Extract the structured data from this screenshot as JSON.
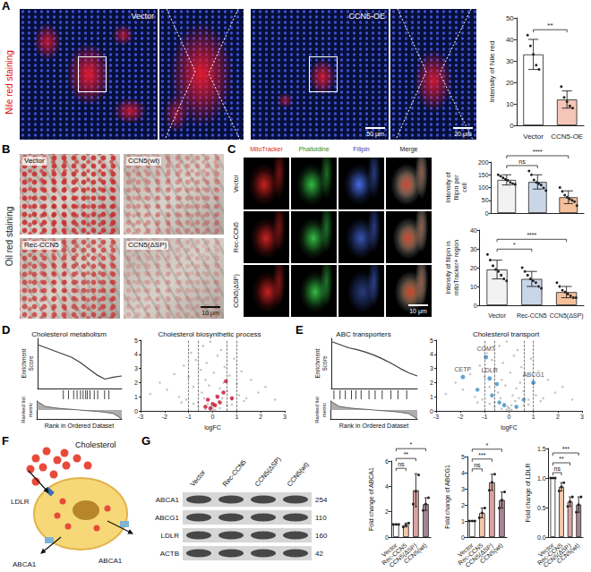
{
  "panel_letters": [
    "A",
    "B",
    "C",
    "D",
    "E",
    "F",
    "G"
  ],
  "panel_a_images": {
    "side_label": "Nile red staining",
    "tiles": [
      "Vector",
      "CCN5-OE"
    ],
    "scale_bars": [
      "50 μm",
      "20 μm"
    ]
  },
  "panel_b_images": {
    "side_label": "Oil red staining",
    "tiles": [
      "Vector",
      "CCN5(wt)",
      "Rec-CCN5",
      "CCN5(ΔSP)"
    ],
    "scale_bar": "10 μm"
  },
  "panel_c_images": {
    "columns": [
      "MitoTracker",
      "Phalloidine",
      "Filipin",
      "Merge"
    ],
    "rows": [
      "Vector",
      "Rec-CCN5",
      "CCN5(ΔSP)"
    ],
    "scale_bar": "10 μm"
  },
  "panel_f_diagram": {
    "labels": [
      "Cholesterol",
      "LDLR",
      "ABCA1",
      "ABCA1"
    ]
  },
  "panel_g_blot": {
    "lanes": [
      "Vector",
      "Rec-CCN5",
      "CCN5(ΔSP)",
      "CCN5(wt)"
    ],
    "rows": [
      {
        "protein": "ABCA1",
        "kda": 254
      },
      {
        "protein": "ABCG1",
        "kda": 110
      },
      {
        "protein": "LDLR",
        "kda": 160
      },
      {
        "protein": "ACTB",
        "kda": 42
      }
    ]
  },
  "chart_data": [
    {
      "type": "bar",
      "ylabel": "Intensity of Nile red",
      "categories": [
        "Vector",
        "CCN5-OE"
      ],
      "values": [
        33,
        12
      ],
      "sd": [
        7,
        4
      ],
      "points": [
        [
          42,
          37,
          33,
          28,
          26
        ],
        [
          18,
          13,
          11,
          9,
          8
        ]
      ],
      "colors": [
        "#ffffff",
        "#f5c6b8"
      ],
      "ylim": [
        0,
        50
      ],
      "yticks": [
        0,
        10,
        20,
        30,
        40,
        50
      ],
      "grid": false,
      "comparisons": [
        {
          "from": 0,
          "to": 1,
          "label": "**"
        }
      ]
    },
    {
      "type": "bar",
      "ylabel": "Intensity of filipin per cell",
      "categories": [
        "Vector",
        "Rec-CCN5",
        "CCN5(ΔSP)"
      ],
      "values": [
        130,
        122,
        62
      ],
      "sd": [
        20,
        28,
        25
      ],
      "points": [
        [
          150,
          145,
          138,
          132,
          128,
          120,
          115,
          112
        ],
        [
          165,
          150,
          130,
          120,
          115,
          110,
          98,
          88
        ],
        [
          100,
          85,
          70,
          62,
          55,
          50,
          45,
          29
        ]
      ],
      "colors": [
        "#f2f2f2",
        "#c9d6e8",
        "#f5c09a"
      ],
      "ylim": [
        0,
        200
      ],
      "yticks": [
        0,
        50,
        100,
        150,
        200
      ],
      "grid": false,
      "tick_labels": "y",
      "comparisons": [
        {
          "from": 0,
          "to": 1,
          "label": "ns"
        },
        {
          "from": 0,
          "to": 2,
          "label": "****"
        }
      ]
    },
    {
      "type": "bar",
      "ylabel": "Intensity of filipin in mitoTracker+ region",
      "categories": [
        "Vector",
        "Rec-CCN5",
        "CCN5(ΔSP)"
      ],
      "values": [
        19,
        14,
        7
      ],
      "sd": [
        5,
        4,
        3
      ],
      "points": [
        [
          27,
          24,
          21,
          19,
          18,
          16,
          14,
          13
        ],
        [
          20,
          18,
          16,
          14,
          13,
          12,
          10,
          9
        ],
        [
          12,
          10,
          8,
          7,
          6,
          5,
          4,
          4
        ]
      ],
      "colors": [
        "#f2f2f2",
        "#c9d6e8",
        "#f5c09a"
      ],
      "ylim": [
        0,
        40
      ],
      "yticks": [
        0,
        10,
        20,
        30,
        40
      ],
      "grid": false,
      "comparisons": [
        {
          "from": 0,
          "to": 1,
          "label": "*"
        },
        {
          "from": 0,
          "to": 2,
          "label": "****"
        }
      ]
    },
    {
      "type": "line",
      "title": "Cholesterol metabolism",
      "ylabel": "Enrichment Score",
      "metric_label": "Ranked list metric",
      "xlabel": "Rank in Ordered Dataset",
      "x": [
        0,
        10,
        20,
        30,
        40,
        50,
        60,
        70,
        80,
        90,
        100
      ],
      "values": [
        0.5,
        0.45,
        0.4,
        0.35,
        0.3,
        0.22,
        0.12,
        0.02,
        -0.05,
        -0.02,
        0
      ],
      "metric": [
        1,
        0.4,
        0.25,
        0.15,
        0.08,
        0,
        -0.08,
        -0.15,
        -0.25,
        -0.4,
        -1
      ],
      "hits": [
        32,
        38,
        44,
        48,
        52,
        55,
        58,
        60,
        63,
        68,
        72,
        80,
        85
      ],
      "xlim": [
        0,
        100
      ],
      "ylim": [
        -0.2,
        0.6
      ],
      "y2lim": [
        -1,
        1
      ],
      "tick_labels": false,
      "color": "#3c3c3c"
    },
    {
      "type": "scatter",
      "title": "Cholesterol biosynthetic process",
      "xlabel": "logFC",
      "x": [
        -2.6,
        -2.2,
        -1.9,
        -1.6,
        -1.4,
        -1.2,
        -1.1,
        -1.0,
        -0.9,
        -0.8,
        -0.7,
        -0.6,
        -0.5,
        -0.45,
        -0.4,
        -0.35,
        -0.3,
        -0.25,
        -0.2,
        -0.15,
        -0.1,
        -0.05,
        0,
        0.05,
        0.1,
        0.15,
        0.2,
        0.25,
        0.3,
        0.35,
        0.4,
        0.45,
        0.5,
        0.6,
        0.7,
        0.8,
        0.9,
        1.0,
        1.1,
        1.2,
        1.4,
        1.6,
        1.9,
        2.2,
        2.6,
        -0.6,
        0.6,
        -0.3,
        0.3,
        -0.8,
        0.8,
        -1.3,
        1.3,
        0,
        -0.1,
        0.1
      ],
      "values": [
        1.2,
        2.0,
        1.5,
        2.6,
        1.0,
        3.2,
        0.8,
        2.4,
        4.1,
        1.7,
        3.6,
        0.6,
        2.9,
        1.3,
        4.6,
        0.9,
        2.2,
        3.4,
        0.5,
        1.8,
        4.9,
        0.3,
        0.2,
        2.7,
        0.4,
        1.1,
        3.9,
        0.7,
        1.6,
        4.3,
        0.9,
        2.0,
        3.1,
        1.4,
        2.5,
        0.8,
        3.7,
        1.9,
        1.1,
        2.8,
        0.9,
        2.2,
        1.3,
        1.7,
        0.8,
        0.3,
        0.4,
        0.15,
        0.2,
        0.5,
        0.45,
        0.6,
        0.7,
        0.05,
        0.1,
        0.08
      ],
      "color": "#b5b5b5",
      "highlight": {
        "x": [
          -0.3,
          -0.2,
          -0.1,
          0,
          0.1,
          0.2,
          0.3,
          0.45,
          0.55,
          0.8
        ],
        "values": [
          0.3,
          0.8,
          0.2,
          0.5,
          0.4,
          1.0,
          0.6,
          1.3,
          2.1,
          0.9
        ],
        "color": "#c8102e"
      },
      "x_lines": [
        -1,
        -0.6,
        0.6,
        1
      ],
      "xlim": [
        -3,
        3
      ],
      "xticks": [
        -3,
        -2,
        -1,
        0,
        1,
        2,
        3
      ],
      "ylim": [
        0,
        5
      ],
      "yticks": [
        0,
        1,
        2,
        3,
        4,
        5
      ],
      "grid": false
    },
    {
      "type": "line",
      "title": "ABC transporters",
      "ylabel": "Enrichment Score",
      "metric_label": "Ranked list metric",
      "xlabel": "Rank in Ordered Dataset",
      "x": [
        0,
        10,
        20,
        30,
        40,
        50,
        60,
        70,
        80,
        90,
        100
      ],
      "values": [
        0.55,
        0.5,
        0.45,
        0.42,
        0.38,
        0.33,
        0.27,
        0.2,
        0.12,
        0.05,
        0
      ],
      "metric": [
        1,
        0.4,
        0.25,
        0.15,
        0.08,
        0,
        -0.08,
        -0.15,
        -0.25,
        -0.4,
        -1
      ],
      "hits": [
        5,
        12,
        18,
        25,
        30,
        36,
        45,
        52,
        60,
        70,
        78,
        88
      ],
      "xlim": [
        0,
        100
      ],
      "ylim": [
        -0.2,
        0.6
      ],
      "y2lim": [
        -1,
        1
      ],
      "tick_labels": false,
      "color": "#3c3c3c"
    },
    {
      "type": "scatter",
      "title": "Cholesterol transport",
      "xlabel": "logFC",
      "x": [
        -2.6,
        -2.2,
        -1.9,
        -1.6,
        -1.4,
        -1.2,
        -1.1,
        -1.0,
        -0.9,
        -0.8,
        -0.7,
        -0.6,
        -0.5,
        -0.45,
        -0.4,
        -0.35,
        -0.3,
        -0.25,
        -0.2,
        -0.15,
        -0.1,
        -0.05,
        0,
        0.05,
        0.1,
        0.15,
        0.2,
        0.25,
        0.3,
        0.35,
        0.4,
        0.45,
        0.5,
        0.6,
        0.7,
        0.8,
        0.9,
        1.0,
        1.1,
        1.2,
        1.4,
        1.6,
        1.9,
        2.2,
        2.6,
        -0.6,
        0.6,
        -0.3,
        0.3,
        -0.8,
        0.8,
        -1.3,
        1.3,
        0,
        -0.1,
        0.1
      ],
      "values": [
        1.2,
        2.0,
        1.5,
        2.6,
        1.0,
        3.2,
        0.8,
        2.4,
        4.1,
        1.7,
        3.6,
        0.6,
        2.9,
        1.3,
        4.6,
        0.9,
        2.2,
        3.4,
        0.5,
        1.8,
        4.9,
        0.3,
        0.2,
        2.7,
        0.4,
        1.1,
        3.9,
        0.7,
        1.6,
        4.3,
        0.9,
        2.0,
        3.1,
        1.4,
        2.5,
        0.8,
        3.7,
        1.9,
        1.1,
        2.8,
        0.9,
        2.2,
        1.3,
        1.7,
        0.8,
        0.3,
        0.4,
        0.15,
        0.2,
        0.5,
        0.45,
        0.6,
        0.7,
        0.05,
        0.1,
        0.08
      ],
      "color": "#b5b5b5",
      "highlight": {
        "x": [
          -1.3,
          -0.7,
          -0.4,
          -0.2,
          0.3,
          0.6,
          -0.5
        ],
        "values": [
          1.5,
          1.1,
          0.6,
          0.4,
          0.3,
          0.8,
          1.9
        ],
        "color": "#3a8fc4"
      },
      "labelled_points": [
        {
          "x": -1.9,
          "y": 2.4,
          "label": "CETP"
        },
        {
          "x": -0.95,
          "y": 3.8,
          "label": "COMT"
        },
        {
          "x": -0.8,
          "y": 2.3,
          "label": "LDLR"
        },
        {
          "x": 1.0,
          "y": 2.0,
          "label": "ABCG1"
        }
      ],
      "x_lines": [
        -1,
        -0.6,
        0.6,
        1
      ],
      "xlim": [
        -3,
        3
      ],
      "xticks": [
        -3,
        -2,
        -1,
        0,
        1,
        2,
        3
      ],
      "ylim": [
        0,
        5
      ],
      "yticks": [
        0,
        1,
        2,
        3,
        4,
        5
      ],
      "grid": false
    },
    {
      "type": "bar",
      "ylabel": "Fold change of ABCA1",
      "categories": [
        "Vector",
        "Rec-CCN5",
        "CCN5(ΔSP)",
        "CCN5(wt)"
      ],
      "values": [
        1,
        0.95,
        3.7,
        2.6
      ],
      "sd": [
        0,
        0.15,
        1.3,
        0.5
      ],
      "points": [
        [
          1,
          1,
          1
        ],
        [
          0.8,
          0.95,
          1.1
        ],
        [
          2.6,
          3.6,
          4.9
        ],
        [
          2.1,
          2.6,
          3.1
        ]
      ],
      "colors": [
        "#ffffff",
        "#f4c7a8",
        "#d9a3a0",
        "#a88496"
      ],
      "ylim": [
        0,
        6
      ],
      "yticks": [
        0,
        2,
        4,
        6
      ],
      "grid": false,
      "comparisons": [
        {
          "from": 0,
          "to": 1,
          "label": "ns"
        },
        {
          "from": 0,
          "to": 2,
          "label": "**"
        },
        {
          "from": 0,
          "to": 3,
          "label": "*"
        }
      ]
    },
    {
      "type": "bar",
      "ylabel": "Fold change of ABCG1",
      "categories": [
        "Vector",
        "Rec-CCN5",
        "CCN5(ΔSP)",
        "CCN5(wt)"
      ],
      "values": [
        1,
        1.5,
        3.4,
        2.3
      ],
      "sd": [
        0,
        0.3,
        0.5,
        0.5
      ],
      "points": [
        [
          1,
          1,
          1
        ],
        [
          1.2,
          1.5,
          1.8
        ],
        [
          2.9,
          3.4,
          3.9
        ],
        [
          1.8,
          2.3,
          2.8
        ]
      ],
      "colors": [
        "#ffffff",
        "#f4c7a8",
        "#d9a3a0",
        "#a88496"
      ],
      "ylim": [
        0,
        5
      ],
      "yticks": [
        0,
        1,
        2,
        3,
        4,
        5
      ],
      "grid": false,
      "comparisons": [
        {
          "from": 0,
          "to": 1,
          "label": "ns"
        },
        {
          "from": 0,
          "to": 2,
          "label": "***"
        },
        {
          "from": 0,
          "to": 3,
          "label": "*"
        }
      ]
    },
    {
      "type": "bar",
      "ylabel": "Fold change of LDLR",
      "categories": [
        "Vector",
        "Rec-CCN5",
        "CCN5(ΔSP)",
        "CCN5(wt)"
      ],
      "values": [
        1,
        0.85,
        0.6,
        0.55
      ],
      "sd": [
        0,
        0.07,
        0.08,
        0.13
      ],
      "points": [
        [
          1,
          1,
          1
        ],
        [
          0.78,
          0.85,
          0.92
        ],
        [
          0.52,
          0.6,
          0.68
        ],
        [
          0.42,
          0.55,
          0.68
        ]
      ],
      "colors": [
        "#ffffff",
        "#f4c7a8",
        "#d9a3a0",
        "#a88496"
      ],
      "ylim": [
        0,
        1.5
      ],
      "yticks": [
        {
          "value": 0,
          "label": "0.0"
        },
        {
          "value": 0.5,
          "label": "0.5"
        },
        {
          "value": 1,
          "label": "1.0"
        },
        {
          "value": 1.5,
          "label": "1.5"
        }
      ],
      "grid": false,
      "comparisons": [
        {
          "from": 0,
          "to": 1,
          "label": "ns"
        },
        {
          "from": 0,
          "to": 2,
          "label": "**"
        },
        {
          "from": 0,
          "to": 3,
          "label": "***"
        }
      ]
    }
  ]
}
